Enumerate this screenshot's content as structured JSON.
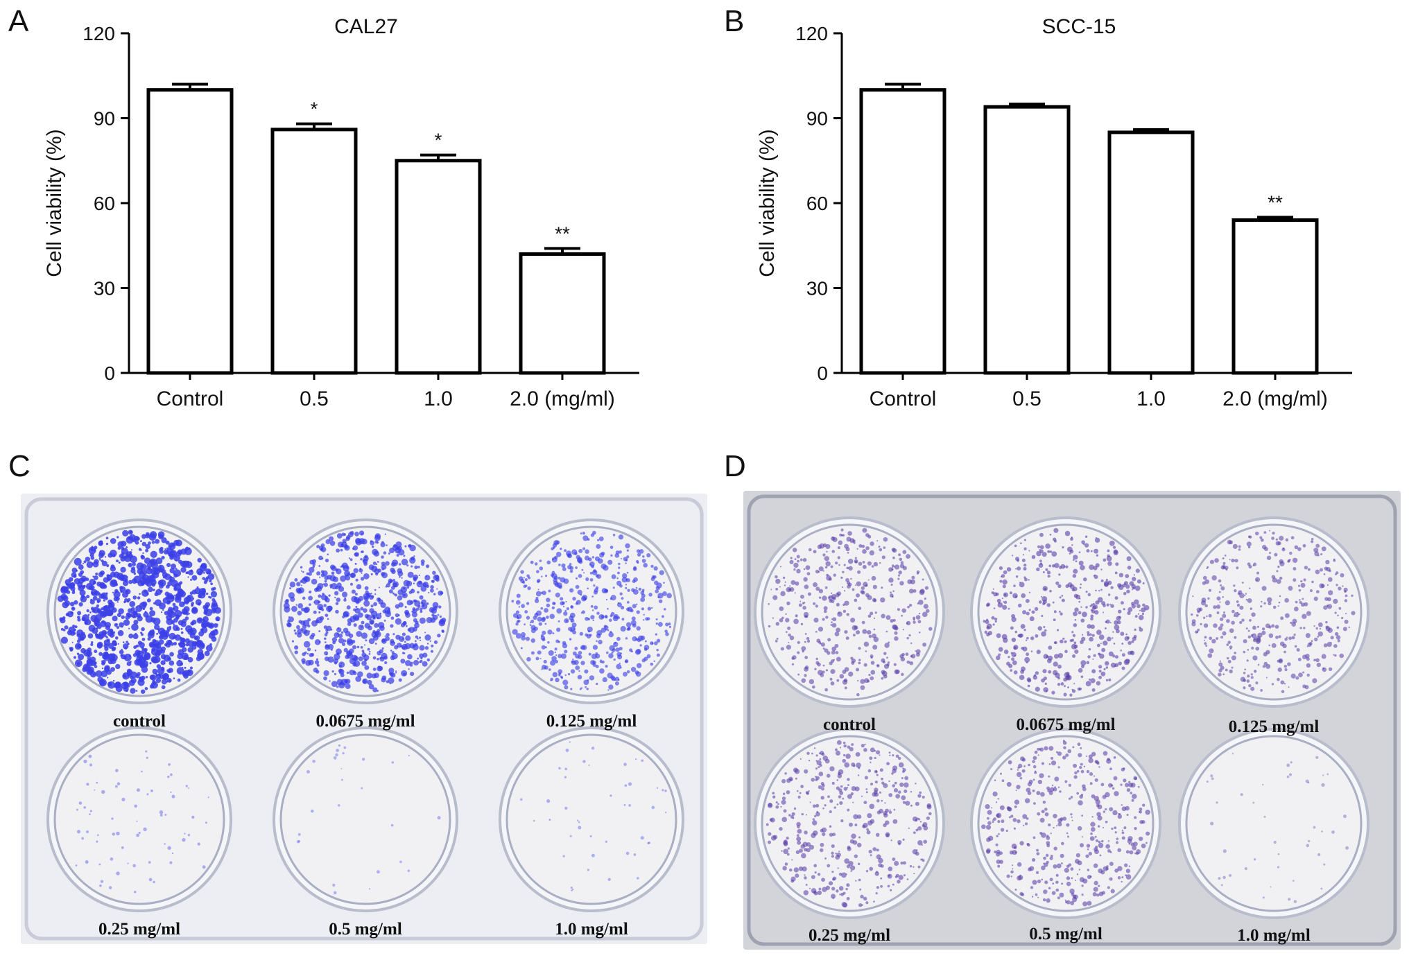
{
  "panels": {
    "a": {
      "letter": "A"
    },
    "b": {
      "letter": "B"
    },
    "c": {
      "letter": "C"
    },
    "d": {
      "letter": "D"
    }
  },
  "chart_data": [
    {
      "type": "bar",
      "title": "CAL27",
      "ylabel": "Cell viability (%)",
      "xlabel": "",
      "categories": [
        "Control",
        "0.5",
        "1.0",
        "2.0 (mg/ml)"
      ],
      "values": [
        100,
        86,
        75,
        42
      ],
      "errors": [
        2,
        2,
        2,
        2
      ],
      "significance": [
        "",
        "*",
        "*",
        "**"
      ],
      "ylim": [
        0,
        120
      ],
      "yticks": [
        "0",
        "30",
        "60",
        "90",
        "120"
      ],
      "grid": false,
      "bar_fill": "#ffffff",
      "bar_stroke": "#000000"
    },
    {
      "type": "bar",
      "title": "SCC-15",
      "ylabel": "Cell viability (%)",
      "xlabel": "",
      "categories": [
        "Control",
        "0.5",
        "1.0",
        "2.0 (mg/ml)"
      ],
      "values": [
        100,
        94,
        85,
        54
      ],
      "errors": [
        2,
        1,
        1,
        1
      ],
      "significance": [
        "",
        "",
        "",
        "**"
      ],
      "ylim": [
        0,
        120
      ],
      "yticks": [
        "0",
        "30",
        "60",
        "90",
        "120"
      ],
      "grid": false,
      "bar_fill": "#ffffff",
      "bar_stroke": "#000000"
    }
  ],
  "photos": {
    "c": {
      "stain_color": "#3b3fe6",
      "labels": [
        "control",
        "0.0675 mg/ml",
        "0.125 mg/ml",
        "0.25 mg/ml",
        "0.5 mg/ml",
        "1.0 mg/ml"
      ],
      "density": [
        1.0,
        0.75,
        0.55,
        0.08,
        0.03,
        0.05
      ]
    },
    "d": {
      "stain_color": "#5a3fa8",
      "labels": [
        "control",
        "0.0675 mg/ml",
        "0.125 mg/ml",
        "0.25 mg/ml",
        "0.5 mg/ml",
        "1.0 mg/ml"
      ],
      "density": [
        0.45,
        0.5,
        0.42,
        0.45,
        0.45,
        0.05
      ]
    }
  }
}
